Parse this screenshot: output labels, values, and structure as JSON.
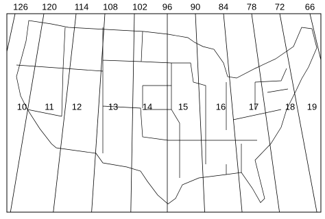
{
  "map": {
    "meridians": [
      126,
      120,
      114,
      108,
      102,
      96,
      90,
      84,
      78,
      72,
      66
    ],
    "zones": [
      10,
      11,
      12,
      13,
      14,
      15,
      16,
      17,
      18,
      19
    ]
  }
}
